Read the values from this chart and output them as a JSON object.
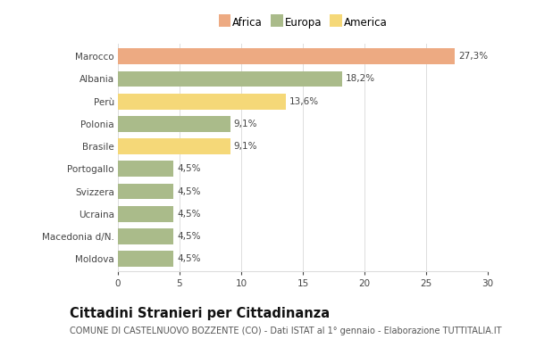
{
  "countries": [
    "Marocco",
    "Albania",
    "Perù",
    "Polonia",
    "Brasile",
    "Portogallo",
    "Svizzera",
    "Ucraina",
    "Macedonia d/N.",
    "Moldova"
  ],
  "values": [
    27.3,
    18.2,
    13.6,
    9.1,
    9.1,
    4.5,
    4.5,
    4.5,
    4.5,
    4.5
  ],
  "labels": [
    "27,3%",
    "18,2%",
    "13,6%",
    "9,1%",
    "9,1%",
    "4,5%",
    "4,5%",
    "4,5%",
    "4,5%",
    "4,5%"
  ],
  "colors": [
    "#EDAA82",
    "#AABB8A",
    "#F5D878",
    "#AABB8A",
    "#F5D878",
    "#AABB8A",
    "#AABB8A",
    "#AABB8A",
    "#AABB8A",
    "#AABB8A"
  ],
  "legend": [
    {
      "label": "Africa",
      "color": "#EDAA82"
    },
    {
      "label": "Europa",
      "color": "#AABB8A"
    },
    {
      "label": "America",
      "color": "#F5D878"
    }
  ],
  "title": "Cittadini Stranieri per Cittadinanza",
  "subtitle": "COMUNE DI CASTELNUOVO BOZZENTE (CO) - Dati ISTAT al 1° gennaio - Elaborazione TUTTITALIA.IT",
  "xlim": [
    0,
    30
  ],
  "xticks": [
    0,
    5,
    10,
    15,
    20,
    25,
    30
  ],
  "background_color": "#ffffff",
  "grid_color": "#dddddd",
  "bar_height": 0.7,
  "label_fontsize": 7.5,
  "tick_fontsize": 7.5,
  "ytick_fontsize": 7.5,
  "title_fontsize": 10.5,
  "subtitle_fontsize": 7.0,
  "legend_fontsize": 8.5
}
